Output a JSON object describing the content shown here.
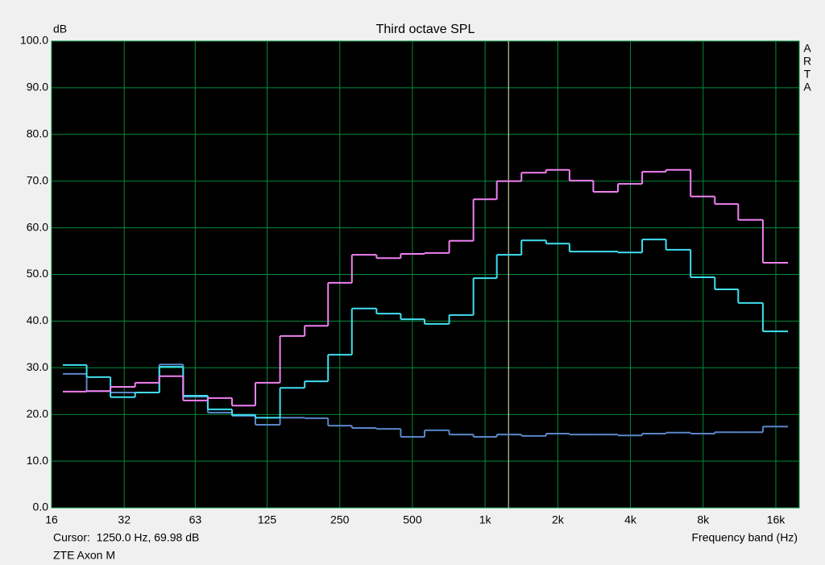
{
  "chart_data": {
    "type": "step",
    "title": "Third octave SPL",
    "y_label": "dB",
    "x_label": "Frequency band (Hz)",
    "cursor": {
      "label": "Cursor:  1250.0 Hz, 69.98 dB",
      "x": 1250,
      "color": "#f0f0c0"
    },
    "footer": "ZTE Axon M",
    "brand": [
      "A",
      "R",
      "T",
      "A"
    ],
    "log_x": true,
    "grid": true,
    "grid_color": "#008c3c",
    "background": "#000000",
    "xlim": [
      16,
      20000
    ],
    "xticks": [
      16,
      32,
      63,
      125,
      250,
      500,
      {
        "value": 1000,
        "label": "1k"
      },
      {
        "value": 2000,
        "label": "2k"
      },
      {
        "value": 4000,
        "label": "4k"
      },
      {
        "value": 8000,
        "label": "8k"
      },
      {
        "value": 16000,
        "label": "16k"
      }
    ],
    "ylim": [
      0,
      100
    ],
    "yticks": [
      {
        "value": 0,
        "label": "0.0"
      },
      {
        "value": 10,
        "label": "10.0"
      },
      {
        "value": 20,
        "label": "20.0"
      },
      {
        "value": 30,
        "label": "30.0"
      },
      {
        "value": 40,
        "label": "40.0"
      },
      {
        "value": 50,
        "label": "50.0"
      },
      {
        "value": 60,
        "label": "60.0"
      },
      {
        "value": 70,
        "label": "70.0"
      },
      {
        "value": 80,
        "label": "80.0"
      },
      {
        "value": 90,
        "label": "90.0"
      },
      {
        "value": 100,
        "label": "100.0"
      }
    ],
    "x": [
      20,
      25,
      31.5,
      40,
      50,
      63,
      80,
      100,
      125,
      160,
      200,
      250,
      315,
      400,
      500,
      630,
      800,
      1000,
      1250,
      1600,
      2000,
      2500,
      3150,
      4000,
      5000,
      6300,
      8000,
      10000,
      12500,
      16000
    ],
    "series": [
      {
        "color": "#5a86c8",
        "values": [
          28.7,
          25.0,
          24.7,
          24.7,
          30.7,
          23.8,
          20.4,
          19.7,
          17.8,
          19.3,
          19.2,
          17.6,
          17.1,
          16.9,
          15.2,
          16.6,
          15.7,
          15.2,
          15.7,
          15.4,
          15.9,
          15.7,
          15.7,
          15.5,
          15.9,
          16.1,
          15.9,
          16.2,
          16.2,
          17.4
        ]
      },
      {
        "color": "#40e0f0",
        "values": [
          30.6,
          28.0,
          23.7,
          24.7,
          30.2,
          24.0,
          21.1,
          19.9,
          19.3,
          25.7,
          27.1,
          32.8,
          42.7,
          41.6,
          40.4,
          39.4,
          41.3,
          49.2,
          54.2,
          57.3,
          56.6,
          54.9,
          54.9,
          54.7,
          57.5,
          55.3,
          49.4,
          46.8,
          43.9,
          37.8
        ]
      },
      {
        "color": "#f080f0",
        "values": [
          24.9,
          25.0,
          25.9,
          26.8,
          28.2,
          23.0,
          23.5,
          21.9,
          26.8,
          36.8,
          39.0,
          48.2,
          54.2,
          53.5,
          54.4,
          54.6,
          57.2,
          66.1,
          70.0,
          71.8,
          72.4,
          70.1,
          67.7,
          69.4,
          72.0,
          72.4,
          66.7,
          65.1,
          61.7,
          52.5
        ]
      }
    ]
  }
}
